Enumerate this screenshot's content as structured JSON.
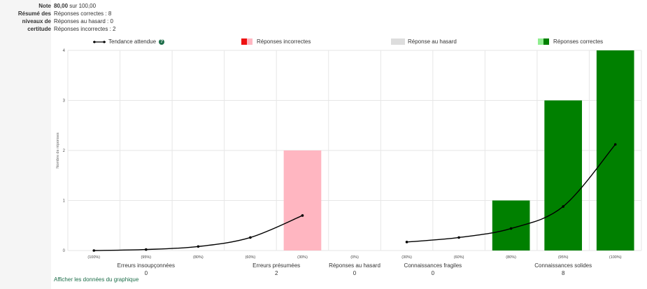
{
  "summary": {
    "note_label": "Note",
    "note_value_bold": "80,00",
    "note_value_rest": "sur 100,00",
    "summary_label": [
      "Résumé des",
      "niveaux de",
      "certitude"
    ],
    "summary_lines": [
      "Réponses correctes : 8",
      "Réponses au hasard : 0",
      "Réponses incorrectes : 2"
    ]
  },
  "legend": {
    "trend": "Tendance attendue",
    "help_icon": "question-circle-icon",
    "incorrect": "Réponses incorrectes",
    "hasard": "Réponse au hasard",
    "correct": "Réponses correctes"
  },
  "link_text": "Afficher les données du graphique",
  "colors": {
    "incorrect_dark": "#ee1111",
    "incorrect_light": "#ffb6c1",
    "hasard": "#dddddd",
    "correct_light": "#90ee90",
    "correct_dark": "#008000",
    "trend": "#000000",
    "link": "#1e6e4a"
  },
  "chart_data": {
    "type": "bar",
    "ylabel": "Nombre de réponses",
    "ylim": [
      0,
      4
    ],
    "yticks": [
      0,
      1,
      2,
      3,
      4
    ],
    "grid": true,
    "legend_position": "top",
    "columns": [
      "(100%)",
      "(95%)",
      "(80%)",
      "(60%)",
      "(30%)",
      "(0%)",
      "(30%)",
      "(60%)",
      "(80%)",
      "(95%)",
      "(100%)"
    ],
    "groups": [
      {
        "label": "Erreurs insoupçonnées",
        "count": "0"
      },
      {
        "label": "Erreurs présumées",
        "count": "2"
      },
      {
        "label": "Réponses au hasard",
        "count": "0"
      },
      {
        "label": "Connaissances fragiles",
        "count": "0"
      },
      {
        "label": "Connaissances solides",
        "count": "8"
      }
    ],
    "series": [
      {
        "name": "Réponses incorrectes",
        "values": [
          0,
          0,
          0,
          0,
          2,
          0,
          0,
          0,
          0,
          0,
          0
        ]
      },
      {
        "name": "Réponse au hasard",
        "values": [
          0,
          0,
          0,
          0,
          0,
          0,
          0,
          0,
          0,
          0,
          0
        ]
      },
      {
        "name": "Réponses correctes",
        "values": [
          0,
          0,
          0,
          0,
          0,
          0,
          0,
          0,
          1,
          3,
          4
        ]
      }
    ],
    "trend": {
      "name": "Tendance attendue",
      "incorrect_side": [
        0,
        0.02,
        0.08,
        0.26,
        0.7
      ],
      "correct_side": [
        0.17,
        0.26,
        0.44,
        0.88,
        2.12
      ]
    }
  }
}
